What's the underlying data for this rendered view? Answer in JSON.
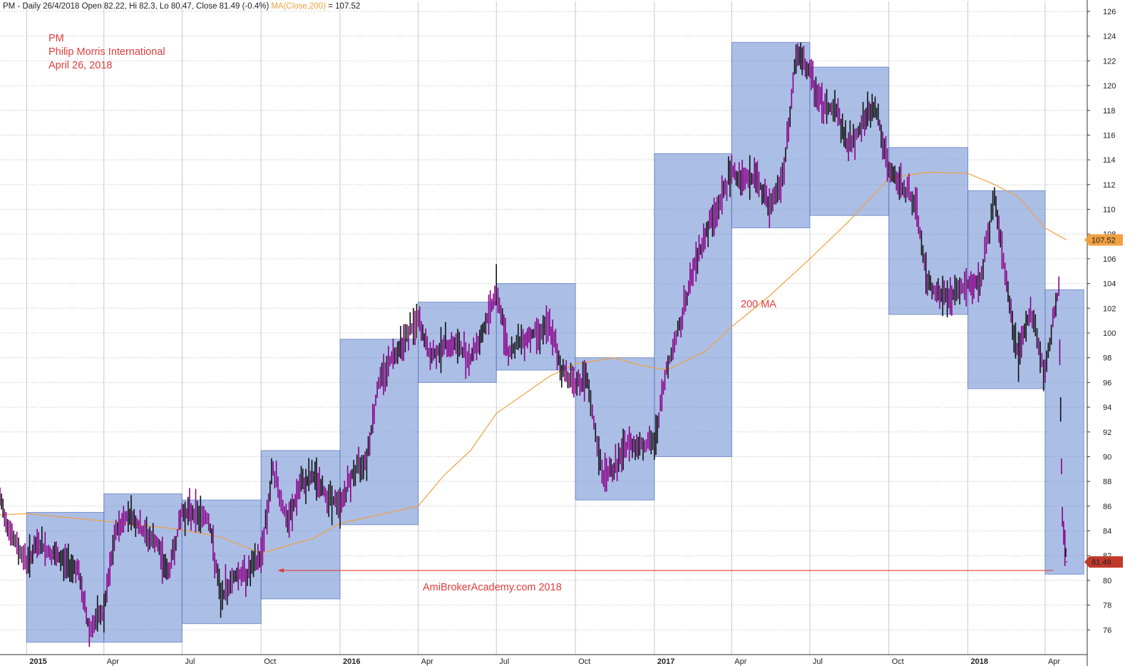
{
  "header": {
    "ticker": "PM - Daily 26/4/2018 Open 82.22, Hi 82.3, Lo 80.47, Close 81.49 (-0.4%)",
    "ma_label": "MA(Close,200)",
    "ma_value": " = 107.52"
  },
  "annotation": {
    "line1": "PM",
    "line2": "Philip Morris International",
    "line3": "April 26, 2018",
    "ma_note": "200 MA",
    "watermark": "AmiBrokerAcademy.com  2018"
  },
  "colors": {
    "price": "#8b008b",
    "price_dark": "#111111",
    "ma": "#f0a040",
    "box": "#6f8fd2",
    "annotation": "#e23c3c",
    "tag_ma": "#f0a040",
    "tag_close": "#c0392b"
  },
  "chart_data": {
    "type": "line",
    "ylim": [
      74,
      126
    ],
    "y_ticks": [
      76,
      78,
      80,
      82,
      84,
      86,
      88,
      90,
      92,
      94,
      96,
      98,
      100,
      102,
      104,
      106,
      108,
      110,
      112,
      114,
      116,
      118,
      120,
      122,
      124,
      126
    ],
    "x_ticks": [
      {
        "label": "2015",
        "date": "2015-01-01",
        "year": true
      },
      {
        "label": "Apr",
        "date": "2015-04-01",
        "year": false
      },
      {
        "label": "Jul",
        "date": "2015-07-01",
        "year": false
      },
      {
        "label": "Oct",
        "date": "2015-10-01",
        "year": false
      },
      {
        "label": "2016",
        "date": "2016-01-01",
        "year": true
      },
      {
        "label": "Apr",
        "date": "2016-04-01",
        "year": false
      },
      {
        "label": "Jul",
        "date": "2016-07-01",
        "year": false
      },
      {
        "label": "Oct",
        "date": "2016-10-01",
        "year": false
      },
      {
        "label": "2017",
        "date": "2017-01-01",
        "year": true
      },
      {
        "label": "Apr",
        "date": "2017-04-01",
        "year": false
      },
      {
        "label": "Jul",
        "date": "2017-07-01",
        "year": false
      },
      {
        "label": "Oct",
        "date": "2017-10-01",
        "year": false
      },
      {
        "label": "2018",
        "date": "2018-01-01",
        "year": true
      },
      {
        "label": "Apr",
        "date": "2018-04-01",
        "year": false
      }
    ],
    "series": [
      {
        "name": "PM",
        "x": [
          "2014-12-01",
          "2014-12-15",
          "2015-01-01",
          "2015-01-15",
          "2015-02-01",
          "2015-02-15",
          "2015-03-01",
          "2015-03-15",
          "2015-04-01",
          "2015-04-15",
          "2015-05-01",
          "2015-05-15",
          "2015-06-01",
          "2015-06-15",
          "2015-07-01",
          "2015-07-15",
          "2015-08-01",
          "2015-08-15",
          "2015-09-01",
          "2015-09-15",
          "2015-10-01",
          "2015-10-15",
          "2015-11-01",
          "2015-11-15",
          "2015-12-01",
          "2015-12-15",
          "2016-01-01",
          "2016-01-15",
          "2016-02-01",
          "2016-02-15",
          "2016-03-01",
          "2016-03-15",
          "2016-04-01",
          "2016-04-15",
          "2016-05-01",
          "2016-05-15",
          "2016-06-01",
          "2016-06-15",
          "2016-07-01",
          "2016-07-15",
          "2016-08-01",
          "2016-08-15",
          "2016-09-01",
          "2016-09-15",
          "2016-10-01",
          "2016-10-15",
          "2016-11-01",
          "2016-11-15",
          "2016-12-01",
          "2016-12-15",
          "2017-01-01",
          "2017-01-15",
          "2017-02-01",
          "2017-02-15",
          "2017-03-01",
          "2017-03-15",
          "2017-04-01",
          "2017-04-15",
          "2017-05-01",
          "2017-05-15",
          "2017-06-01",
          "2017-06-15",
          "2017-07-01",
          "2017-07-15",
          "2017-08-01",
          "2017-08-15",
          "2017-09-01",
          "2017-09-15",
          "2017-10-01",
          "2017-10-15",
          "2017-11-01",
          "2017-11-15",
          "2017-12-01",
          "2017-12-15",
          "2018-01-01",
          "2018-01-15",
          "2018-02-01",
          "2018-02-15",
          "2018-03-01",
          "2018-03-15",
          "2018-04-01",
          "2018-04-10",
          "2018-04-17",
          "2018-04-19",
          "2018-04-21",
          "2018-04-24",
          "2018-04-26"
        ],
        "values": [
          86.5,
          83.5,
          81.5,
          83,
          82,
          81.5,
          81,
          76,
          77.5,
          84,
          85.5,
          84,
          83,
          80.5,
          85.5,
          85.5,
          85,
          78.5,
          80.5,
          80.5,
          82,
          89,
          84.5,
          87.5,
          88.5,
          87,
          86,
          88.5,
          90,
          96,
          98,
          99.5,
          101,
          98,
          99,
          99,
          98,
          100,
          103.5,
          98.5,
          99.5,
          100,
          100.5,
          97,
          96,
          96,
          88.5,
          89,
          91,
          91,
          91,
          97,
          101,
          105,
          108,
          110,
          113,
          112.5,
          112.5,
          110,
          113,
          122.5,
          121,
          118.5,
          118,
          115,
          117,
          118.5,
          113,
          112,
          110.5,
          104,
          103,
          103,
          104,
          104,
          111,
          104,
          98,
          102,
          96.5,
          101,
          103.5,
          93.5,
          85,
          83,
          81.49
        ]
      },
      {
        "name": "MA(Close,200)",
        "x": [
          "2014-12-01",
          "2015-01-01",
          "2015-04-01",
          "2015-07-01",
          "2015-08-15",
          "2015-10-01",
          "2015-12-01",
          "2016-01-01",
          "2016-04-01",
          "2016-05-01",
          "2016-06-01",
          "2016-07-01",
          "2016-09-01",
          "2016-10-01",
          "2016-11-15",
          "2016-12-15",
          "2017-01-15",
          "2017-03-01",
          "2017-04-01",
          "2017-05-15",
          "2017-07-01",
          "2017-08-15",
          "2017-10-01",
          "2017-11-15",
          "2018-01-01",
          "2018-02-01",
          "2018-03-01",
          "2018-04-01",
          "2018-04-26"
        ],
        "values": [
          85.3,
          85.4,
          84.8,
          84.1,
          83.5,
          82.2,
          83.4,
          84.6,
          86,
          88.5,
          90.5,
          93.5,
          96.5,
          97.5,
          98,
          97.4,
          97,
          98.5,
          100.5,
          103,
          106,
          109,
          112.5,
          113,
          112.9,
          112,
          111,
          108.5,
          107.52
        ]
      }
    ],
    "shown_boxes": [
      {
        "start": "2015-01-01",
        "end": "2015-04-01",
        "low": 75,
        "high": 85.5
      },
      {
        "start": "2015-04-01",
        "end": "2015-07-01",
        "low": 75,
        "high": 87
      },
      {
        "start": "2015-07-01",
        "end": "2015-10-01",
        "low": 76.5,
        "high": 86.5
      },
      {
        "start": "2015-10-01",
        "end": "2016-01-01",
        "low": 78.5,
        "high": 90.5
      },
      {
        "start": "2016-01-01",
        "end": "2016-04-01",
        "low": 84.5,
        "high": 99.5
      },
      {
        "start": "2016-04-01",
        "end": "2016-07-01",
        "low": 96,
        "high": 102.5
      },
      {
        "start": "2016-07-01",
        "end": "2016-10-01",
        "low": 97,
        "high": 104
      },
      {
        "start": "2016-10-01",
        "end": "2017-01-01",
        "low": 86.5,
        "high": 98
      },
      {
        "start": "2017-01-01",
        "end": "2017-04-01",
        "low": 90,
        "high": 114.5
      },
      {
        "start": "2017-04-01",
        "end": "2017-07-01",
        "low": 108.5,
        "high": 123.5
      },
      {
        "start": "2017-07-01",
        "end": "2017-10-01",
        "low": 109.5,
        "high": 121.5
      },
      {
        "start": "2017-10-01",
        "end": "2018-01-01",
        "low": 101.5,
        "high": 115
      },
      {
        "start": "2018-01-01",
        "end": "2018-04-01",
        "low": 95.5,
        "high": 111.5
      },
      {
        "start": "2018-04-01",
        "end": "2018-05-16",
        "low": 80.5,
        "high": 103.5
      }
    ],
    "arrow": {
      "from_date": "2018-04-10",
      "to_date": "2015-10-20",
      "value": 80.8
    },
    "tags": {
      "ma": 107.52,
      "close": 81.49
    },
    "tag_labels": {
      "ma": "107.52",
      "close": "81.49"
    }
  }
}
